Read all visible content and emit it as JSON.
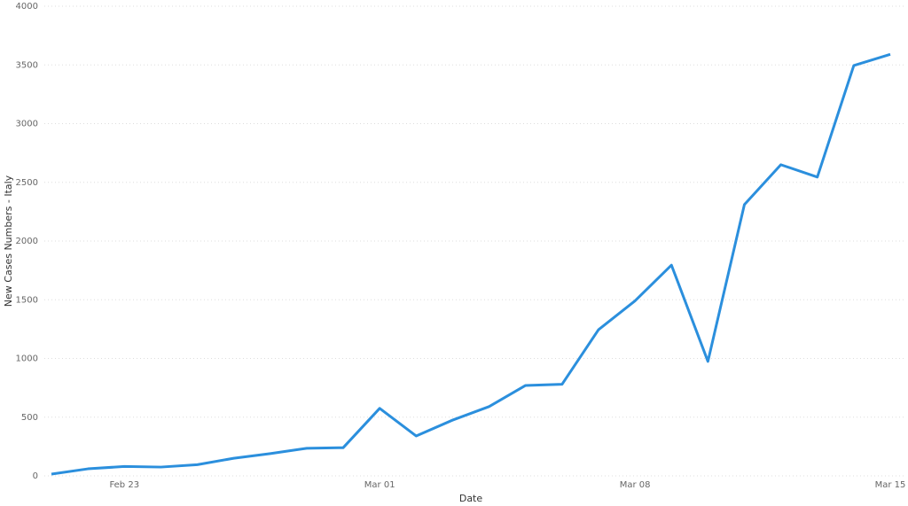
{
  "chart_data": {
    "type": "line",
    "x_label": "Date",
    "y_label": "New Cases Numbers - Italy",
    "x": [
      "Feb 21",
      "Feb 22",
      "Feb 23",
      "Feb 24",
      "Feb 25",
      "Feb 26",
      "Feb 27",
      "Feb 28",
      "Feb 29",
      "Mar 01",
      "Mar 02",
      "Mar 03",
      "Mar 04",
      "Mar 05",
      "Mar 06",
      "Mar 07",
      "Mar 08",
      "Mar 09",
      "Mar 10",
      "Mar 11",
      "Mar 12",
      "Mar 13",
      "Mar 14",
      "Mar 15"
    ],
    "xticks": [
      "Feb 23",
      "Mar 01",
      "Mar 08",
      "Mar 15"
    ],
    "values": [
      15,
      60,
      80,
      75,
      95,
      150,
      190,
      235,
      240,
      575,
      340,
      475,
      590,
      770,
      780,
      1245,
      1490,
      1795,
      975,
      2310,
      2650,
      2545,
      3495,
      3590
    ],
    "color": "#2b8fdd",
    "ylim": [
      0,
      4000
    ],
    "yticks": [
      0,
      500,
      1000,
      1500,
      2000,
      2500,
      3000,
      3500,
      4000
    ],
    "grid": true
  }
}
